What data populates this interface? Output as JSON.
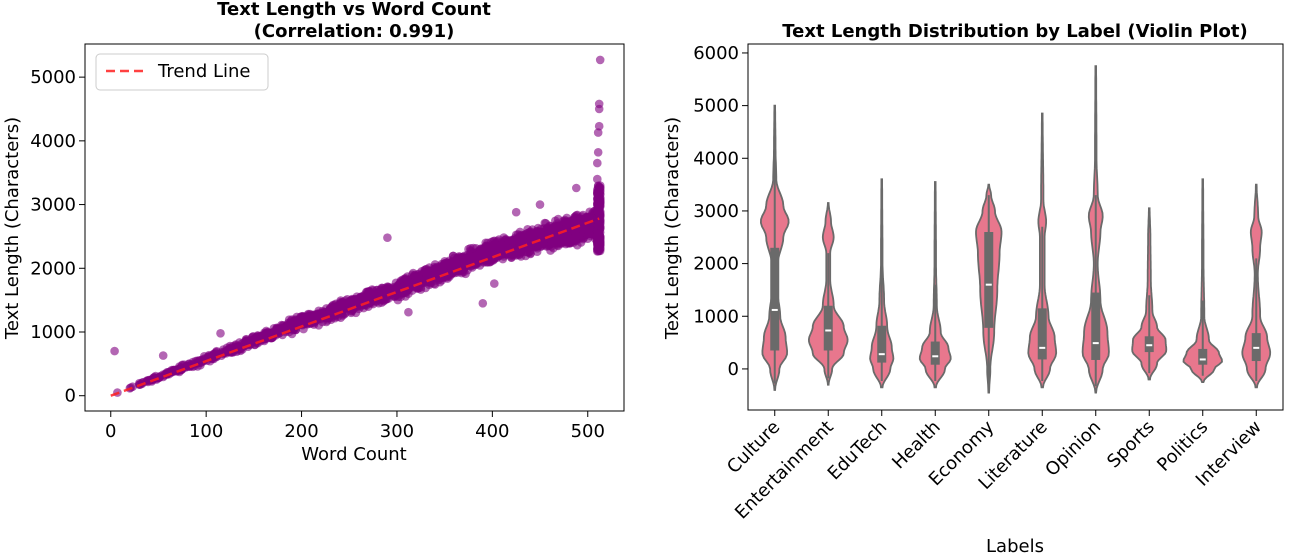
{
  "chart_data": [
    {
      "type": "scatter",
      "title": "Text Length vs Word Count\n(Correlation: 0.991)",
      "xlabel": "Word Count",
      "ylabel": "Text Length (Characters)",
      "xlim": [
        -27,
        538
      ],
      "ylim": [
        -240,
        5520
      ],
      "xticks": [
        0,
        100,
        200,
        300,
        400,
        500
      ],
      "yticks": [
        0,
        1000,
        2000,
        3000,
        4000,
        5000
      ],
      "grid": false,
      "legend": {
        "placement": "top-left",
        "entries": [
          "Trend Line"
        ]
      },
      "colors": {
        "points": "#800080",
        "trend": "#ff2020"
      },
      "trend_line": {
        "x": [
          0,
          512
        ],
        "y": [
          0,
          2780
        ]
      },
      "series": [
        {
          "kind": "point-cloud",
          "band": [
            {
              "x": 0,
              "y_low": 0,
              "y_high": 20
            },
            {
              "x": 100,
              "y_low": 490,
              "y_high": 660
            },
            {
              "x": 200,
              "y_low": 1000,
              "y_high": 1300
            },
            {
              "x": 300,
              "y_low": 1480,
              "y_high": 1860
            },
            {
              "x": 400,
              "y_low": 2050,
              "y_high": 2480
            },
            {
              "x": 500,
              "y_low": 2350,
              "y_high": 2950
            },
            {
              "x": 512,
              "y_low": 2250,
              "y_high": 3300
            }
          ],
          "outliers": [
            {
              "x": 4,
              "y": 700
            },
            {
              "x": 55,
              "y": 630
            },
            {
              "x": 115,
              "y": 980
            },
            {
              "x": 290,
              "y": 2480
            },
            {
              "x": 285,
              "y": 1560
            },
            {
              "x": 312,
              "y": 1310
            },
            {
              "x": 375,
              "y": 2300
            },
            {
              "x": 390,
              "y": 1450
            },
            {
              "x": 402,
              "y": 1760
            },
            {
              "x": 425,
              "y": 2880
            },
            {
              "x": 450,
              "y": 3000
            },
            {
              "x": 488,
              "y": 3260
            },
            {
              "x": 510,
              "y": 3400
            },
            {
              "x": 510,
              "y": 3650
            },
            {
              "x": 511,
              "y": 3820
            },
            {
              "x": 511,
              "y": 4130
            },
            {
              "x": 512,
              "y": 4230
            },
            {
              "x": 512,
              "y": 4500
            },
            {
              "x": 512,
              "y": 4580
            },
            {
              "x": 513,
              "y": 5270
            }
          ]
        }
      ]
    },
    {
      "type": "violin",
      "title": "Text Length Distribution by Label (Violin Plot)",
      "xlabel": "Labels",
      "ylabel": "Text Length (Characters)",
      "ylim": [
        -780,
        6170
      ],
      "yticks": [
        0,
        1000,
        2000,
        3000,
        4000,
        5000,
        6000
      ],
      "grid": false,
      "colors": {
        "fill": "#e8778d",
        "edge": "#6a6a6a"
      },
      "categories": [
        "Culture",
        "Entertainment",
        "EduTech",
        "Health",
        "Economy",
        "Literature",
        "Opinion",
        "Sports",
        "Politics",
        "Interview"
      ],
      "violins": [
        {
          "min": -400,
          "max": 5000,
          "q1": 350,
          "median": 1120,
          "q3": 2300,
          "whisker_high": 4600,
          "profile": [
            [
              -400,
              0.01
            ],
            [
              0,
              0.12
            ],
            [
              300,
              0.32
            ],
            [
              600,
              0.28
            ],
            [
              1000,
              0.14
            ],
            [
              1500,
              0.07
            ],
            [
              2000,
              0.08
            ],
            [
              2500,
              0.22
            ],
            [
              2800,
              0.36
            ],
            [
              3100,
              0.22
            ],
            [
              3600,
              0.04
            ],
            [
              4200,
              0.02
            ],
            [
              5000,
              0.01
            ]
          ]
        },
        {
          "min": -300,
          "max": 3150,
          "q1": 350,
          "median": 730,
          "q3": 1200,
          "whisker_high": 2200,
          "profile": [
            [
              -300,
              0.01
            ],
            [
              0,
              0.1
            ],
            [
              300,
              0.4
            ],
            [
              550,
              0.5
            ],
            [
              800,
              0.4
            ],
            [
              1200,
              0.14
            ],
            [
              1700,
              0.05
            ],
            [
              2200,
              0.05
            ],
            [
              2500,
              0.14
            ],
            [
              2800,
              0.07
            ],
            [
              3150,
              0.01
            ]
          ]
        },
        {
          "min": -350,
          "max": 3600,
          "q1": 120,
          "median": 280,
          "q3": 820,
          "whisker_high": 1900,
          "profile": [
            [
              -350,
              0.02
            ],
            [
              0,
              0.22
            ],
            [
              200,
              0.3
            ],
            [
              400,
              0.26
            ],
            [
              800,
              0.14
            ],
            [
              1300,
              0.06
            ],
            [
              2000,
              0.02
            ],
            [
              3600,
              0.01
            ]
          ]
        },
        {
          "min": -350,
          "max": 3550,
          "q1": 80,
          "median": 240,
          "q3": 520,
          "whisker_high": 1600,
          "profile": [
            [
              -350,
              0.02
            ],
            [
              0,
              0.25
            ],
            [
              200,
              0.4
            ],
            [
              400,
              0.34
            ],
            [
              700,
              0.14
            ],
            [
              1200,
              0.04
            ],
            [
              2000,
              0.02
            ],
            [
              3550,
              0.01
            ]
          ]
        },
        {
          "min": -450,
          "max": 3500,
          "q1": 780,
          "median": 1600,
          "q3": 2600,
          "whisker_high": 3300,
          "profile": [
            [
              -450,
              0.01
            ],
            [
              0,
              0.04
            ],
            [
              700,
              0.14
            ],
            [
              1500,
              0.22
            ],
            [
              2200,
              0.28
            ],
            [
              2600,
              0.33
            ],
            [
              3000,
              0.16
            ],
            [
              3300,
              0.06
            ],
            [
              3500,
              0.01
            ]
          ]
        },
        {
          "min": -350,
          "max": 4850,
          "q1": 180,
          "median": 400,
          "q3": 1150,
          "whisker_high": 2700,
          "profile": [
            [
              -350,
              0.02
            ],
            [
              0,
              0.2
            ],
            [
              300,
              0.36
            ],
            [
              600,
              0.32
            ],
            [
              1000,
              0.16
            ],
            [
              1600,
              0.06
            ],
            [
              2500,
              0.06
            ],
            [
              2800,
              0.1
            ],
            [
              3200,
              0.03
            ],
            [
              4850,
              0.01
            ]
          ]
        },
        {
          "min": -450,
          "max": 5750,
          "q1": 170,
          "median": 490,
          "q3": 1450,
          "whisker_high": 3300,
          "profile": [
            [
              -450,
              0.01
            ],
            [
              0,
              0.18
            ],
            [
              300,
              0.34
            ],
            [
              700,
              0.3
            ],
            [
              1300,
              0.12
            ],
            [
              2000,
              0.05
            ],
            [
              2600,
              0.12
            ],
            [
              2900,
              0.18
            ],
            [
              3300,
              0.05
            ],
            [
              4000,
              0.02
            ],
            [
              5750,
              0.01
            ]
          ]
        },
        {
          "min": -200,
          "max": 3050,
          "q1": 320,
          "median": 450,
          "q3": 620,
          "whisker_high": 1400,
          "profile": [
            [
              -200,
              0.02
            ],
            [
              100,
              0.2
            ],
            [
              350,
              0.44
            ],
            [
              550,
              0.42
            ],
            [
              800,
              0.2
            ],
            [
              1100,
              0.08
            ],
            [
              1700,
              0.04
            ],
            [
              2500,
              0.03
            ],
            [
              3050,
              0.01
            ]
          ]
        },
        {
          "min": -250,
          "max": 3600,
          "q1": 80,
          "median": 180,
          "q3": 380,
          "whisker_high": 1300,
          "profile": [
            [
              -250,
              0.02
            ],
            [
              0,
              0.3
            ],
            [
              150,
              0.5
            ],
            [
              300,
              0.42
            ],
            [
              550,
              0.16
            ],
            [
              1000,
              0.04
            ],
            [
              2000,
              0.02
            ],
            [
              3600,
              0.01
            ]
          ]
        },
        {
          "min": -350,
          "max": 3500,
          "q1": 150,
          "median": 400,
          "q3": 680,
          "whisker_high": 2100,
          "profile": [
            [
              -350,
              0.02
            ],
            [
              0,
              0.24
            ],
            [
              300,
              0.36
            ],
            [
              600,
              0.28
            ],
            [
              1000,
              0.1
            ],
            [
              1800,
              0.04
            ],
            [
              2300,
              0.1
            ],
            [
              2600,
              0.14
            ],
            [
              2900,
              0.05
            ],
            [
              3500,
              0.01
            ]
          ]
        }
      ]
    }
  ]
}
